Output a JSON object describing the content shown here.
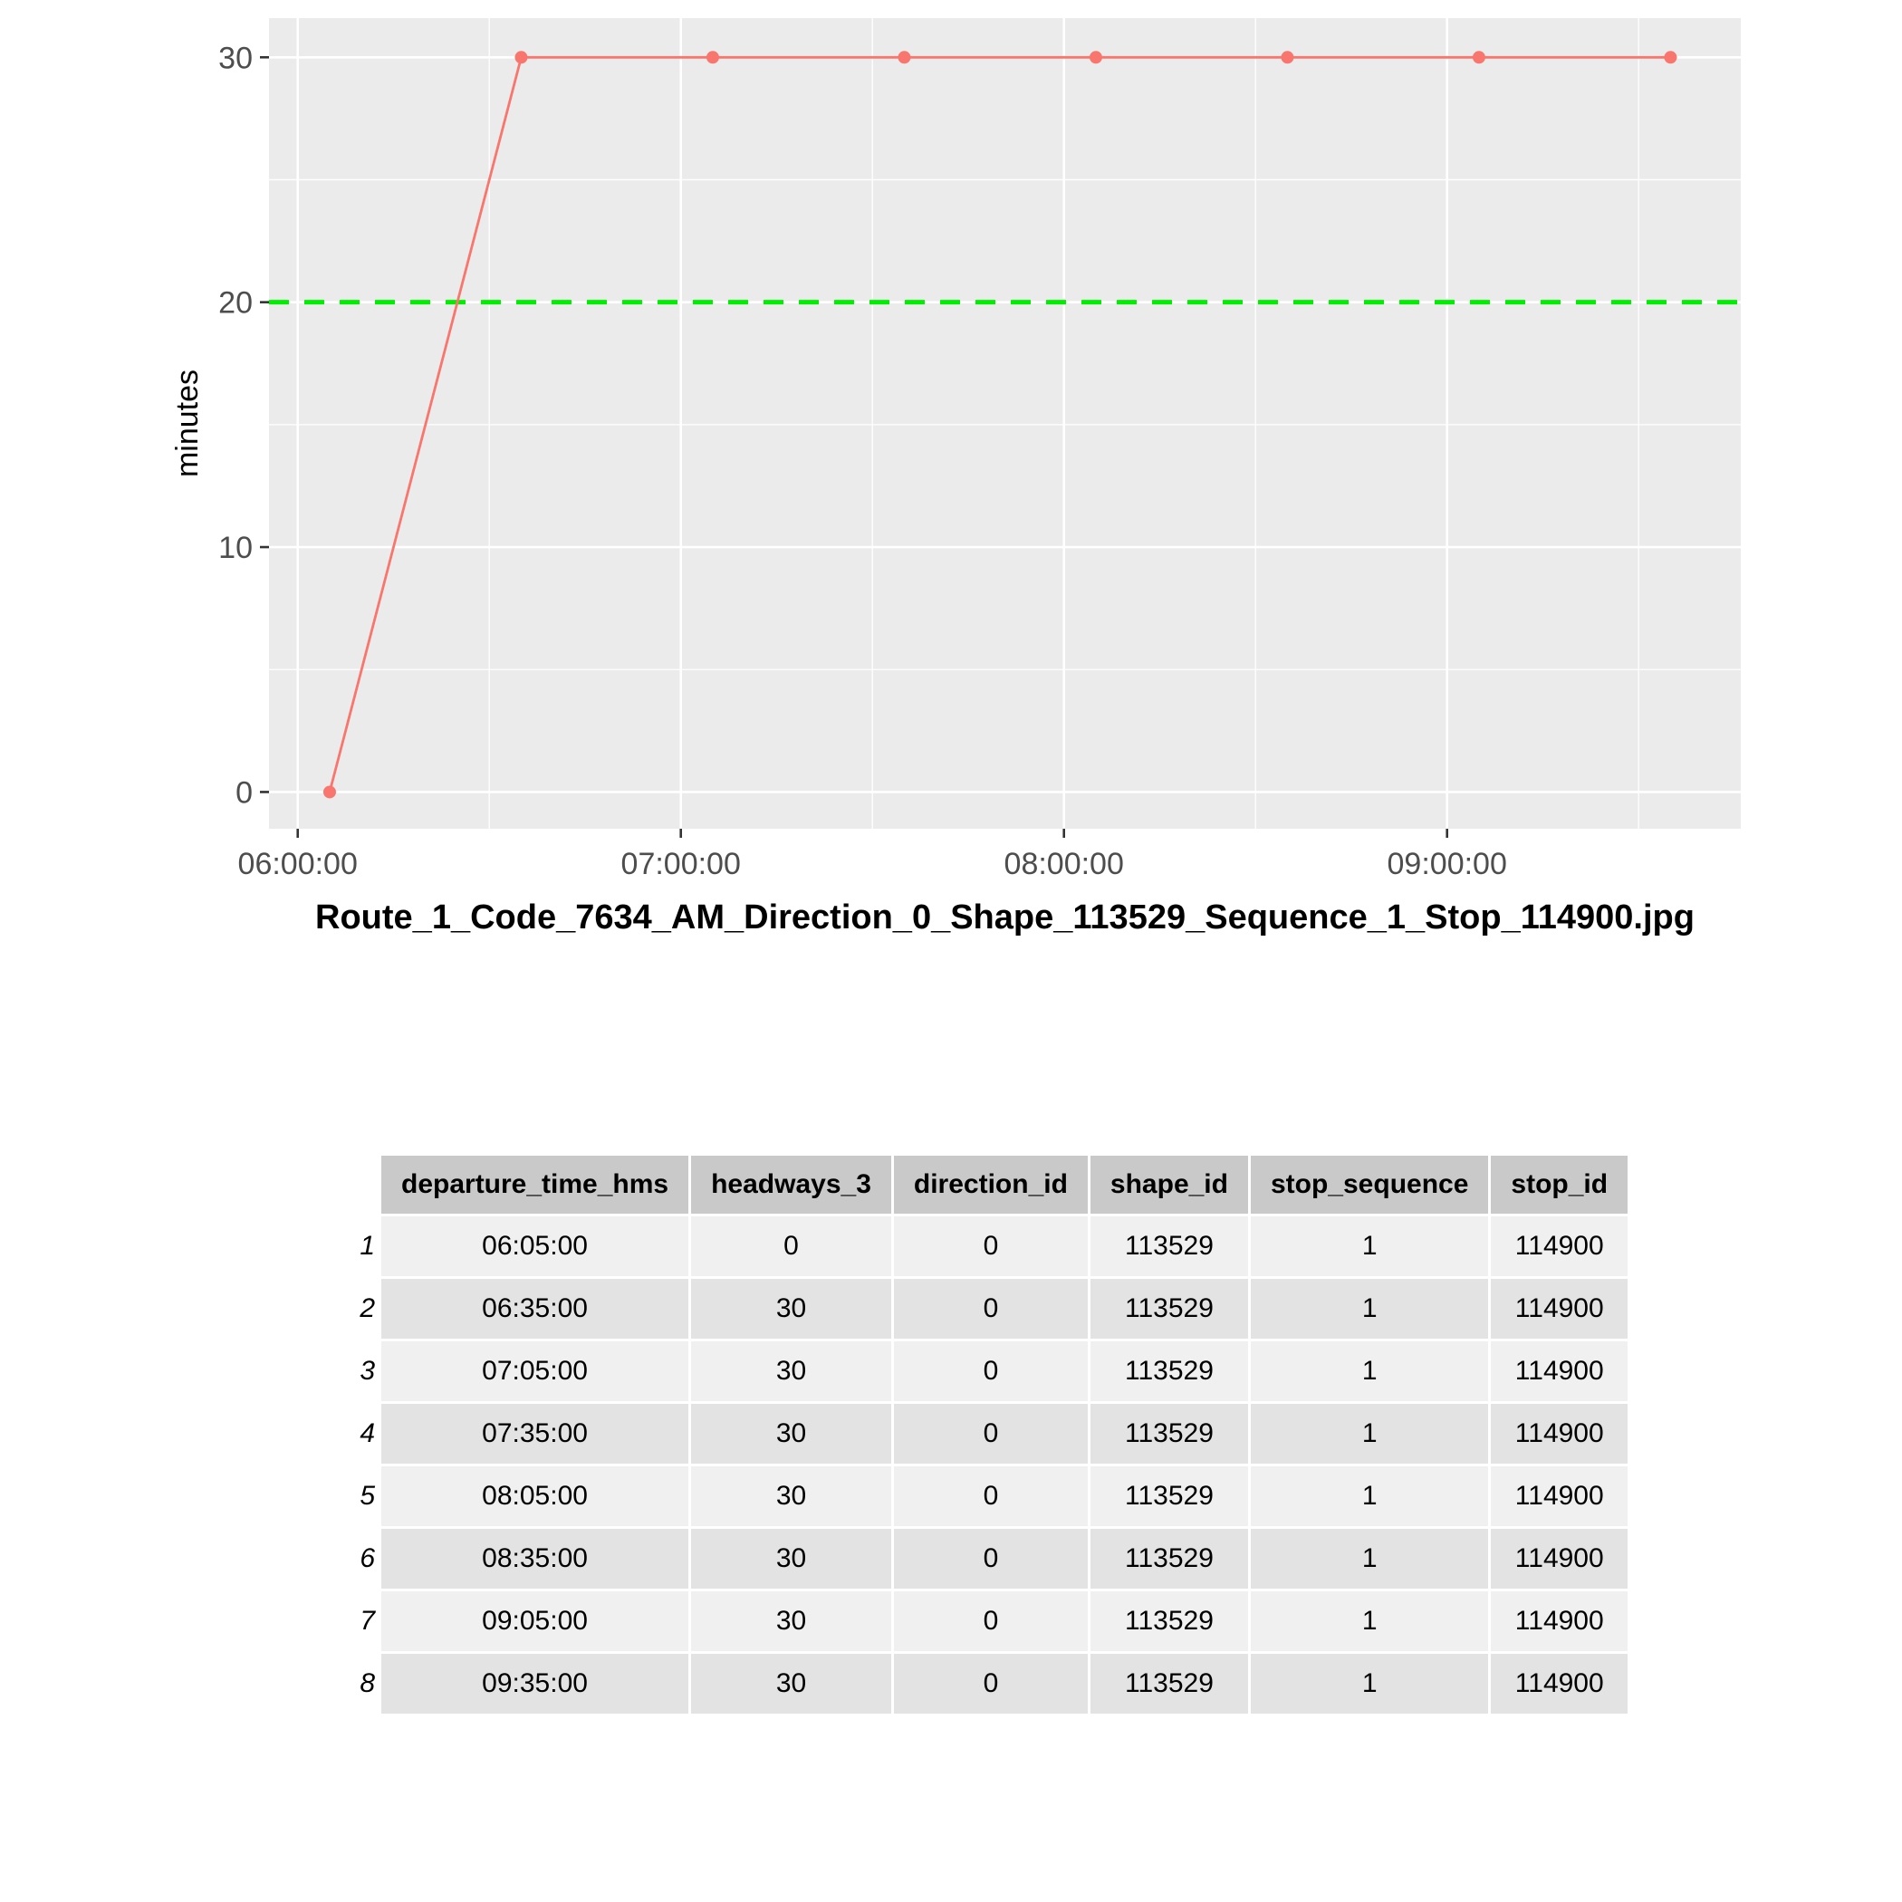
{
  "chart_data": {
    "type": "line",
    "xlabel": "Route_1_Code_7634_AM_Direction_0_Shape_113529_Sequence_1_Stop_114900.jpg",
    "ylabel": "minutes",
    "x_tick_labels": [
      "06:00:00",
      "07:00:00",
      "08:00:00",
      "09:00:00"
    ],
    "y_tick_labels": [
      "0",
      "10",
      "20",
      "30"
    ],
    "ylim": [
      -1.5,
      31.6
    ],
    "xlim": [
      "05:55:30",
      "09:46:00"
    ],
    "grid": true,
    "series": [
      {
        "x": [
          "06:05:00",
          "06:35:00",
          "07:05:00",
          "07:35:00",
          "08:05:00",
          "08:35:00",
          "09:05:00",
          "09:35:00"
        ],
        "values": [
          0,
          30,
          30,
          30,
          30,
          30,
          30,
          30
        ],
        "color": "#f8766d"
      }
    ],
    "reference_line": {
      "y": 20,
      "color": "#00ee00",
      "style": "dashed"
    }
  },
  "table": {
    "columns": [
      "departure_time_hms",
      "headways_3",
      "direction_id",
      "shape_id",
      "stop_sequence",
      "stop_id"
    ],
    "rows": [
      {
        "n": "1",
        "cells": [
          "06:05:00",
          "0",
          "0",
          "113529",
          "1",
          "114900"
        ]
      },
      {
        "n": "2",
        "cells": [
          "06:35:00",
          "30",
          "0",
          "113529",
          "1",
          "114900"
        ]
      },
      {
        "n": "3",
        "cells": [
          "07:05:00",
          "30",
          "0",
          "113529",
          "1",
          "114900"
        ]
      },
      {
        "n": "4",
        "cells": [
          "07:35:00",
          "30",
          "0",
          "113529",
          "1",
          "114900"
        ]
      },
      {
        "n": "5",
        "cells": [
          "08:05:00",
          "30",
          "0",
          "113529",
          "1",
          "114900"
        ]
      },
      {
        "n": "6",
        "cells": [
          "08:35:00",
          "30",
          "0",
          "113529",
          "1",
          "114900"
        ]
      },
      {
        "n": "7",
        "cells": [
          "09:05:00",
          "30",
          "0",
          "113529",
          "1",
          "114900"
        ]
      },
      {
        "n": "8",
        "cells": [
          "09:35:00",
          "30",
          "0",
          "113529",
          "1",
          "114900"
        ]
      }
    ]
  }
}
